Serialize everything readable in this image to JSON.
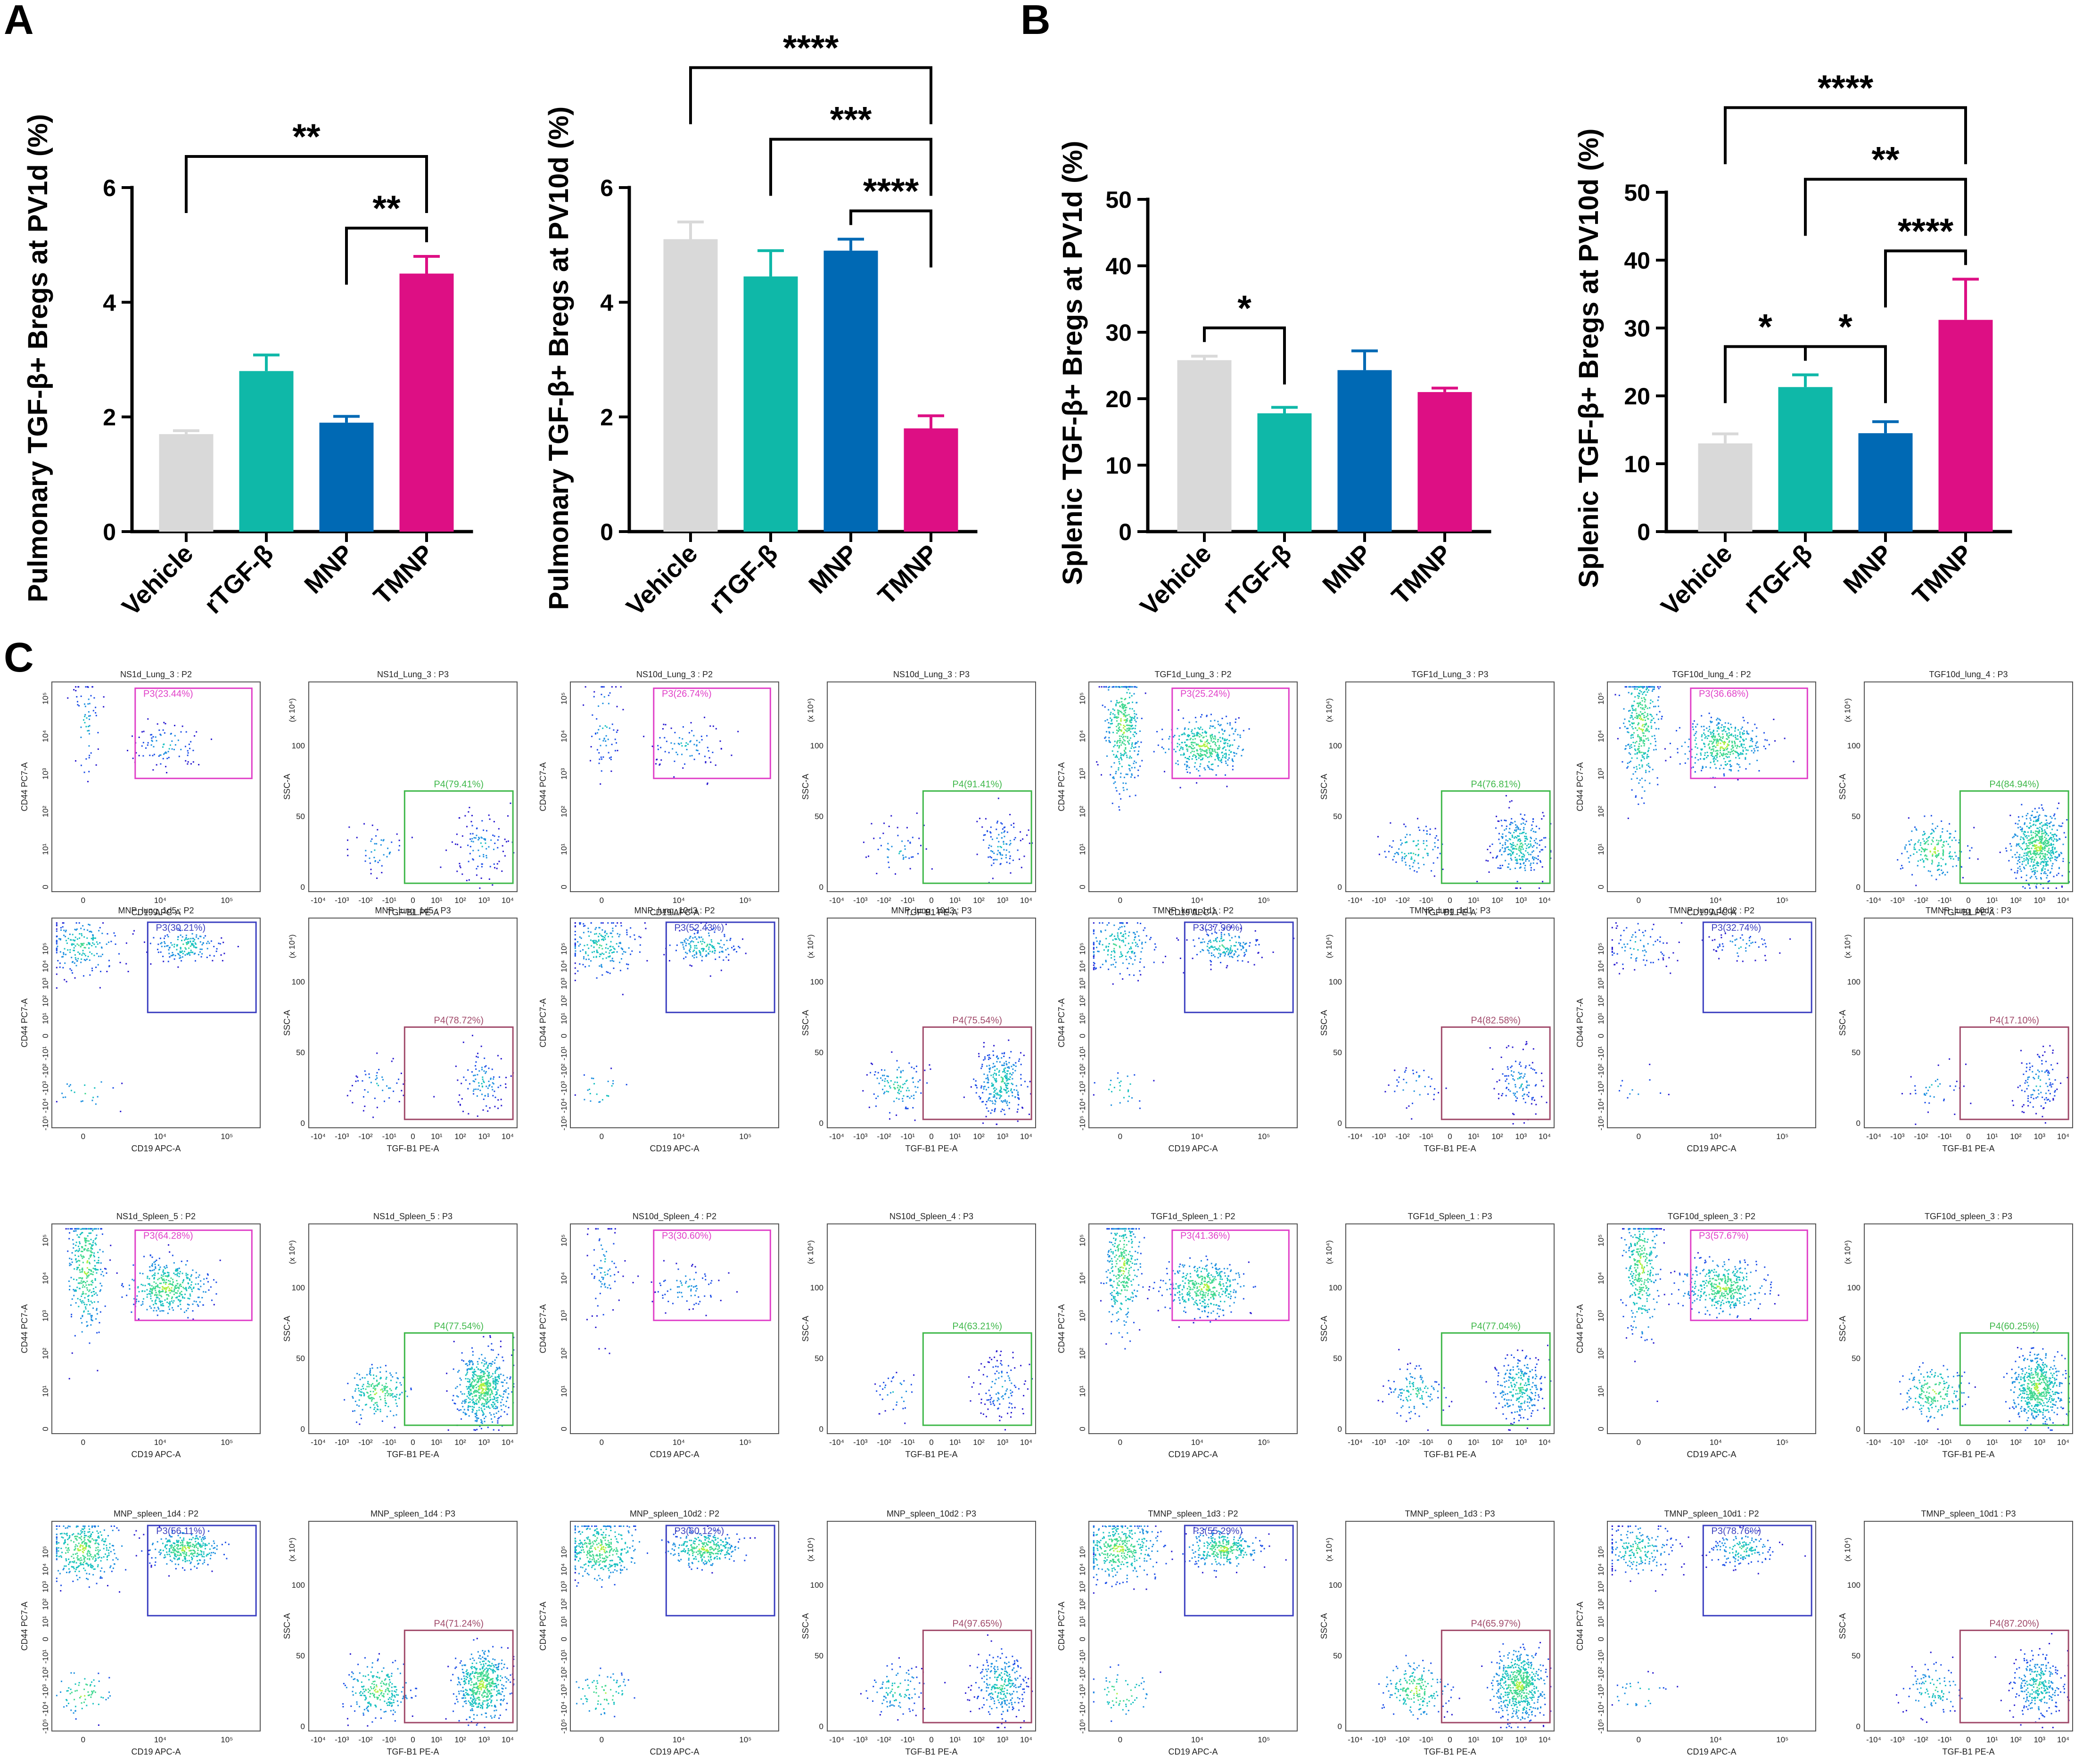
{
  "panel_letters": {
    "a": "A",
    "b": "B",
    "c": "C"
  },
  "colors": {
    "vehicle": "#d9d9d9",
    "rtgf": "#0fb8a8",
    "mnp": "#0069b4",
    "tmnp": "#dd0f84",
    "gate_magenta": "#e040c8",
    "gate_green": "#3fb84a",
    "gate_blue": "#3b3fc0",
    "gate_maroon": "#a04a6a"
  },
  "chart_data": [
    {
      "type": "bar",
      "panel": "A",
      "categories": [
        "Vehicle",
        "rTGF-β",
        "MNP",
        "TMNP"
      ],
      "values": [
        1.7,
        2.8,
        1.9,
        4.5
      ],
      "errors": [
        0.06,
        0.28,
        0.11,
        0.3
      ],
      "ylabel": "Pulmonary TGF-β+ Bregs at PV1d (%)",
      "ylim": [
        0,
        6
      ],
      "yticks": [
        0,
        2,
        4,
        6
      ],
      "comparisons": [
        {
          "from": 0,
          "to": 3,
          "label": "**"
        },
        {
          "from": 2,
          "to": 3,
          "label": "**"
        }
      ]
    },
    {
      "type": "bar",
      "panel": "A",
      "categories": [
        "Vehicle",
        "rTGF-β",
        "MNP",
        "TMNP"
      ],
      "values": [
        5.1,
        4.45,
        4.9,
        1.8
      ],
      "errors": [
        0.3,
        0.45,
        0.2,
        0.22
      ],
      "ylabel": "Pulmonary TGF-β+ Bregs at PV10d (%)",
      "ylim": [
        0,
        6
      ],
      "yticks": [
        0,
        2,
        4,
        6
      ],
      "comparisons": [
        {
          "from": 0,
          "to": 3,
          "label": "****"
        },
        {
          "from": 1,
          "to": 3,
          "label": "***"
        },
        {
          "from": 2,
          "to": 3,
          "label": "****"
        }
      ]
    },
    {
      "type": "bar",
      "panel": "B",
      "categories": [
        "Vehicle",
        "rTGF-β",
        "MNP",
        "TMNP"
      ],
      "values": [
        25.8,
        17.8,
        24.3,
        21.0
      ],
      "errors": [
        0.6,
        0.9,
        2.9,
        0.6
      ],
      "ylabel": "Splenic TGF-β+ Bregs at PV1d (%)",
      "ylim": [
        0,
        50
      ],
      "yticks": [
        0,
        10,
        20,
        30,
        40,
        50
      ],
      "comparisons": [
        {
          "from": 0,
          "to": 1,
          "label": "*"
        }
      ]
    },
    {
      "type": "bar",
      "panel": "B",
      "categories": [
        "Vehicle",
        "rTGF-β",
        "MNP",
        "TMNP"
      ],
      "values": [
        13.0,
        21.3,
        14.5,
        31.2
      ],
      "errors": [
        1.4,
        1.8,
        1.7,
        6.0
      ],
      "ylabel": "Splenic TGF-β+ Bregs at PV10d (%)",
      "ylim": [
        0,
        50
      ],
      "yticks": [
        0,
        10,
        20,
        30,
        40,
        50
      ],
      "comparisons": [
        {
          "from": 0,
          "to": 3,
          "label": "****"
        },
        {
          "from": 1,
          "to": 3,
          "label": "**"
        },
        {
          "from": 0,
          "to": 1,
          "label": "*"
        },
        {
          "from": 1,
          "to": 2,
          "label": "*"
        },
        {
          "from": 2,
          "to": 3,
          "label": "****"
        }
      ]
    }
  ],
  "flow_axes": {
    "p2_x": "CD19 APC-A",
    "p2_y": "CD44 PC7-A",
    "p3_x": "TGF-B1 PE-A",
    "p3_y": "SSC-A",
    "scale_note": "(x 10⁴)",
    "p2_xticks": [
      "0",
      "10⁴",
      "10⁵"
    ],
    "p2_yticks_a": [
      "0",
      "10¹",
      "10²",
      "10³",
      "10⁴",
      "10⁵"
    ],
    "p2_yticks_b": [
      "-10⁵",
      "-10⁴",
      "-10³",
      "-10²",
      "-10¹",
      "0",
      "10¹",
      "10²",
      "10³",
      "10⁴",
      "10⁵"
    ],
    "p3_xticks": [
      "-10⁴",
      "-10³",
      "-10²",
      "-10¹",
      "0",
      "10¹",
      "10²",
      "10³",
      "10⁴"
    ],
    "p3_yticks": [
      "0",
      "50",
      "100"
    ]
  },
  "flow_plots": [
    {
      "title": "NS1d_Lung_3 : P2",
      "type": "p2",
      "gate": "P3(23.44%)",
      "gate_color": "magenta",
      "density": "low"
    },
    {
      "title": "NS1d_Lung_3 : P3",
      "type": "p3",
      "gate": "P4(79.41%)",
      "gate_color": "green",
      "density": "low"
    },
    {
      "title": "NS10d_Lung_3 : P2",
      "type": "p2",
      "gate": "P3(26.74%)",
      "gate_color": "magenta",
      "density": "low"
    },
    {
      "title": "NS10d_Lung_3 : P3",
      "type": "p3",
      "gate": "P4(91.41%)",
      "gate_color": "green",
      "density": "low"
    },
    {
      "title": "TGF1d_Lung_3 : P2",
      "type": "p2",
      "gate": "P3(25.24%)",
      "gate_color": "magenta",
      "density": "high"
    },
    {
      "title": "TGF1d_Lung_3 : P3",
      "type": "p3",
      "gate": "P4(76.81%)",
      "gate_color": "green",
      "density": "med"
    },
    {
      "title": "TGF10d_lung_4 : P2",
      "type": "p2",
      "gate": "P3(36.68%)",
      "gate_color": "magenta",
      "density": "high"
    },
    {
      "title": "TGF10d_lung_4 : P3",
      "type": "p3",
      "gate": "P4(84.94%)",
      "gate_color": "green",
      "density": "high"
    },
    {
      "title": "MNP_lung_1d5 : P2",
      "type": "p2b",
      "gate": "P3(30.21%)",
      "gate_color": "blue",
      "density": "med"
    },
    {
      "title": "MNP_lung_1d5 : P3",
      "type": "p3",
      "gate": "P4(78.72%)",
      "gate_color": "maroon",
      "density": "low"
    },
    {
      "title": "MNP_lung_10d3 : P2",
      "type": "p2b",
      "gate": "P3(52.43%)",
      "gate_color": "blue",
      "density": "med"
    },
    {
      "title": "MNP_lung_10d3 : P3",
      "type": "p3",
      "gate": "P4(75.54%)",
      "gate_color": "maroon",
      "density": "med"
    },
    {
      "title": "TMNP_lung_1d1 : P2",
      "type": "p2b",
      "gate": "P3(37.96%)",
      "gate_color": "blue",
      "density": "med"
    },
    {
      "title": "TMNP_lung_1d1 : P3",
      "type": "p3",
      "gate": "P4(82.58%)",
      "gate_color": "maroon",
      "density": "low"
    },
    {
      "title": "TMNP_lung_10d2 : P2",
      "type": "p2b",
      "gate": "P3(32.74%)",
      "gate_color": "blue",
      "density": "low"
    },
    {
      "title": "TMNP_lung_10d2 : P3",
      "type": "p3",
      "gate": "P4(17.10%)",
      "gate_color": "maroon",
      "density": "low"
    },
    {
      "title": "NS1d_Spleen_5 : P2",
      "type": "p2",
      "gate": "P3(64.28%)",
      "gate_color": "magenta",
      "density": "high"
    },
    {
      "title": "NS1d_Spleen_5 : P3",
      "type": "p3",
      "gate": "P4(77.54%)",
      "gate_color": "green",
      "density": "high"
    },
    {
      "title": "NS10d_Spleen_4 : P2",
      "type": "p2",
      "gate": "P3(30.60%)",
      "gate_color": "magenta",
      "density": "low"
    },
    {
      "title": "NS10d_Spleen_4 : P3",
      "type": "p3",
      "gate": "P4(63.21%)",
      "gate_color": "green",
      "density": "low"
    },
    {
      "title": "TGF1d_Spleen_1 : P2",
      "type": "p2",
      "gate": "P3(41.36%)",
      "gate_color": "magenta",
      "density": "high"
    },
    {
      "title": "TGF1d_Spleen_1 : P3",
      "type": "p3",
      "gate": "P4(77.04%)",
      "gate_color": "green",
      "density": "med"
    },
    {
      "title": "TGF10d_spleen_3 : P2",
      "type": "p2",
      "gate": "P3(57.67%)",
      "gate_color": "magenta",
      "density": "high"
    },
    {
      "title": "TGF10d_spleen_3 : P3",
      "type": "p3",
      "gate": "P4(60.25%)",
      "gate_color": "green",
      "density": "high"
    },
    {
      "title": "MNP_spleen_1d4 : P2",
      "type": "p2b",
      "gate": "P3(56.11%)",
      "gate_color": "blue",
      "density": "high"
    },
    {
      "title": "MNP_spleen_1d4 : P3",
      "type": "p3",
      "gate": "P4(71.24%)",
      "gate_color": "maroon",
      "density": "high"
    },
    {
      "title": "MNP_spleen_10d2 : P2",
      "type": "p2b",
      "gate": "P3(60.12%)",
      "gate_color": "blue",
      "density": "high"
    },
    {
      "title": "MNP_spleen_10d2 : P3",
      "type": "p3",
      "gate": "P4(97.65%)",
      "gate_color": "maroon",
      "density": "med"
    },
    {
      "title": "TMNP_spleen_1d3 : P2",
      "type": "p2b",
      "gate": "P3(55.29%)",
      "gate_color": "blue",
      "density": "high"
    },
    {
      "title": "TMNP_spleen_1d3 : P3",
      "type": "p3",
      "gate": "P4(65.97%)",
      "gate_color": "maroon",
      "density": "high"
    },
    {
      "title": "TMNP_spleen_10d1 : P2",
      "type": "p2b",
      "gate": "P3(78.76%)",
      "gate_color": "blue",
      "density": "med"
    },
    {
      "title": "TMNP_spleen_10d1 : P3",
      "type": "p3",
      "gate": "P4(87.20%)",
      "gate_color": "maroon",
      "density": "med"
    }
  ]
}
